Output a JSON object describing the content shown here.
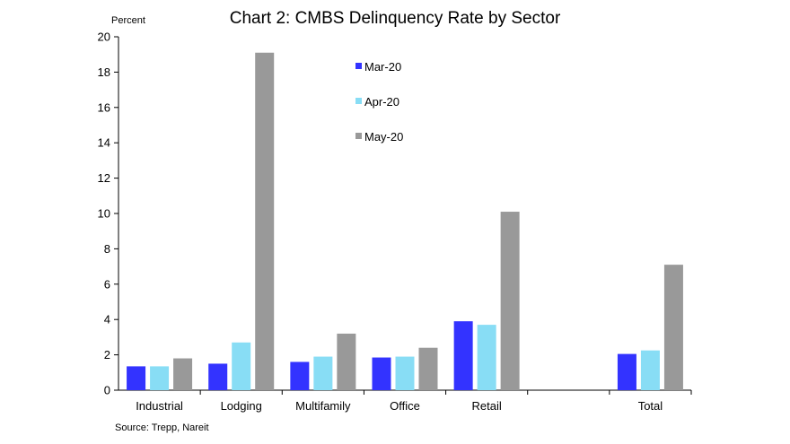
{
  "chart_data": {
    "type": "bar",
    "title": "Chart 2: CMBS Delinquency Rate by Sector",
    "ylabel": "Percent",
    "xlabel": "",
    "source": "Source: Trepp, Nareit",
    "categories": [
      "Industrial",
      "Lodging",
      "Multifamily",
      "Office",
      "Retail",
      "",
      "Total"
    ],
    "series": [
      {
        "name": "Mar-20",
        "color": "#3333ff",
        "values": [
          1.35,
          1.5,
          1.6,
          1.85,
          3.9,
          null,
          2.05
        ]
      },
      {
        "name": "Apr-20",
        "color": "#88ddf5",
        "values": [
          1.35,
          2.7,
          1.9,
          1.9,
          3.7,
          null,
          2.25
        ]
      },
      {
        "name": "May-20",
        "color": "#999999",
        "values": [
          1.8,
          19.1,
          3.2,
          2.4,
          10.1,
          null,
          7.1
        ]
      }
    ],
    "ylim": [
      0,
      20
    ],
    "yticks": [
      "0",
      "2",
      "4",
      "6",
      "8",
      "10",
      "12",
      "14",
      "16",
      "18",
      "20"
    ],
    "grid": false,
    "legend_position": "top-center"
  }
}
